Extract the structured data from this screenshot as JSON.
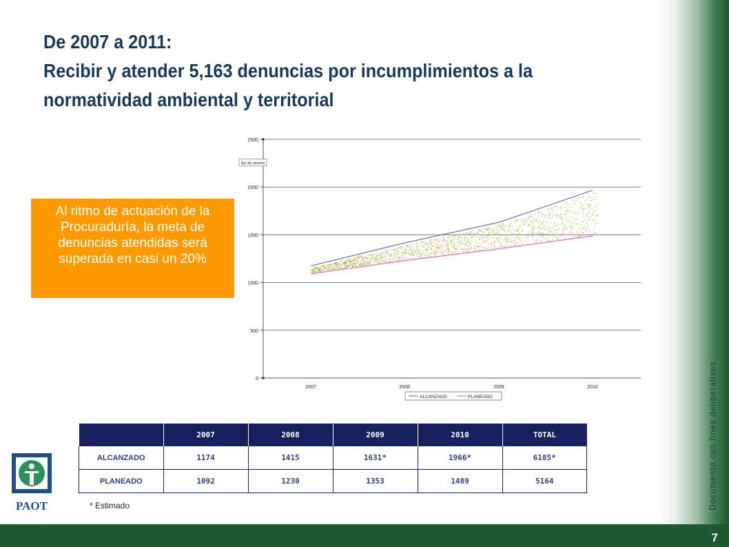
{
  "title": {
    "line1": "De 2007 a 2011:",
    "line2": "Recibir y atender 5,163 denuncias por incumplimientos a la",
    "line3": "normatividad ambiental y territorial"
  },
  "callout": "Al ritmo de actuación de la Procuraduría, la meta de denuncias atendidas será superada en casi un 20%",
  "side_note": "Documento con fines deliberativos",
  "page_number": "7",
  "logo_text": "PAOT",
  "footnote": "* Estimado",
  "colors": {
    "title": "#17385e",
    "callout": "#ff9900",
    "band": "#1d5a34",
    "table_header": "#17215f",
    "alcanzado": "#5a64b4",
    "planeado": "#e060c8",
    "fill_dots": "#a3a620"
  },
  "chart_data": {
    "type": "line",
    "title": "",
    "xlabel": "",
    "ylabel": "Eje de valores",
    "categories": [
      "2007",
      "2008",
      "2009",
      "2010"
    ],
    "ylim": [
      0,
      2500
    ],
    "yticks": [
      "0",
      "500",
      "1000",
      "1500",
      "2000",
      "2500"
    ],
    "grid": true,
    "legend_position": "bottom",
    "series": [
      {
        "name": "ALCANZADO",
        "values": [
          1174,
          1415,
          1631,
          1966
        ]
      },
      {
        "name": "PLANEADO",
        "values": [
          1092,
          1230,
          1353,
          1489
        ]
      }
    ]
  },
  "table": {
    "headers": [
      "",
      "2007",
      "2008",
      "2009",
      "2010",
      "TOTAL"
    ],
    "rows": [
      [
        "ALCANZADO",
        "1174",
        "1415",
        "1631*",
        "1966*",
        "6185*"
      ],
      [
        "PLANEADO",
        "1092",
        "1230",
        "1353",
        "1489",
        "5164"
      ]
    ]
  }
}
